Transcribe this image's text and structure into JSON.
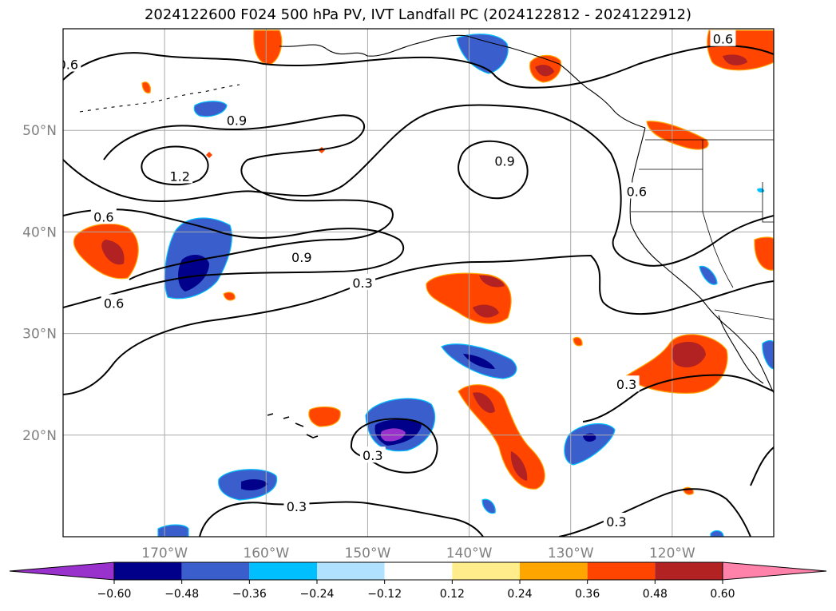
{
  "title": "2024122600 F024 500 hPa PV, IVT Landfall PC (2024122812 - 2024122912)",
  "map": {
    "projection": "equirectangular",
    "lon_range": [
      -180,
      -110
    ],
    "lat_range": [
      10,
      60
    ],
    "grid": true,
    "lon_ticks": [
      -170,
      -160,
      -150,
      -140,
      -130,
      -120
    ],
    "lon_tick_labels": [
      "170°W",
      "160°W",
      "150°W",
      "140°W",
      "130°W",
      "120°W"
    ],
    "lat_ticks": [
      20,
      30,
      40,
      50
    ],
    "lat_tick_labels": [
      "20°N",
      "30°N",
      "40°N",
      "50°N"
    ],
    "contour_labels": [
      {
        "text": "0.6",
        "lon": -179.5,
        "lat": 56.5
      },
      {
        "text": "0.9",
        "lon": -162.9,
        "lat": 51.0
      },
      {
        "text": "1.2",
        "lon": -168.5,
        "lat": 45.5
      },
      {
        "text": "0.9",
        "lon": -136.5,
        "lat": 47.0
      },
      {
        "text": "0.6",
        "lon": -123.5,
        "lat": 44.0
      },
      {
        "text": "0.6",
        "lon": -176.0,
        "lat": 41.5
      },
      {
        "text": "0.9",
        "lon": -156.5,
        "lat": 37.5
      },
      {
        "text": "0.3",
        "lon": -150.5,
        "lat": 35.0
      },
      {
        "text": "0.6",
        "lon": -175.0,
        "lat": 33.0
      },
      {
        "text": "0.3",
        "lon": -124.5,
        "lat": 25.0
      },
      {
        "text": "0.3",
        "lon": -149.5,
        "lat": 18.0
      },
      {
        "text": "0.3",
        "lon": -157.0,
        "lat": 13.0
      },
      {
        "text": "0.3",
        "lon": -125.5,
        "lat": 11.5
      },
      {
        "text": "0.6",
        "lon": -115.0,
        "lat": 59.0
      }
    ]
  },
  "colorbar": {
    "tick_labels": [
      "−0.60",
      "−0.48",
      "−0.36",
      "−0.24",
      "−0.12",
      "0.12",
      "0.24",
      "0.36",
      "0.48",
      "0.60"
    ],
    "colors": [
      "#9932cc",
      "#00008b",
      "#3a5fcd",
      "#00bfff",
      "#b0e2ff",
      "#ffffff",
      "#ffec8b",
      "#ffa500",
      "#ff4500",
      "#b22222",
      "#ff82ab"
    ],
    "extend": "both"
  }
}
